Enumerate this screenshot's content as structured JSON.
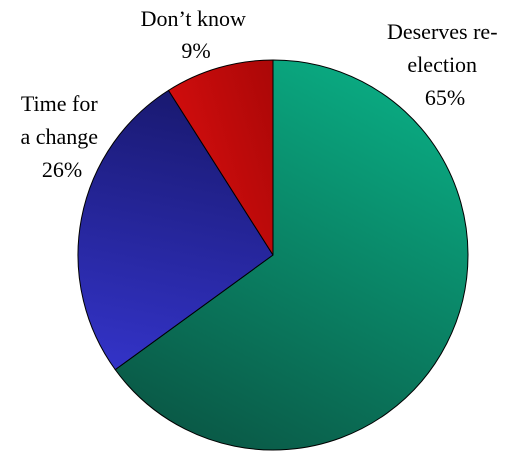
{
  "chart_data": {
    "type": "pie",
    "title": "",
    "slices": [
      {
        "label_lines": [
          "Deserves re-",
          "election"
        ],
        "value": 65,
        "value_label": "65%",
        "color_light": "#0aa880",
        "color_dark": "#0a5a47"
      },
      {
        "label_lines": [
          "Time for",
          "a change"
        ],
        "value": 26,
        "value_label": "26%",
        "color_light": "#3838d8",
        "color_dark": "#141460"
      },
      {
        "label_lines": [
          "Don’t know"
        ],
        "value": 9,
        "value_label": "9%",
        "color_light": "#ff1414",
        "color_dark": "#7a0000"
      }
    ],
    "start_angle": "12 o'clock",
    "direction": "clockwise",
    "legend": "none"
  }
}
